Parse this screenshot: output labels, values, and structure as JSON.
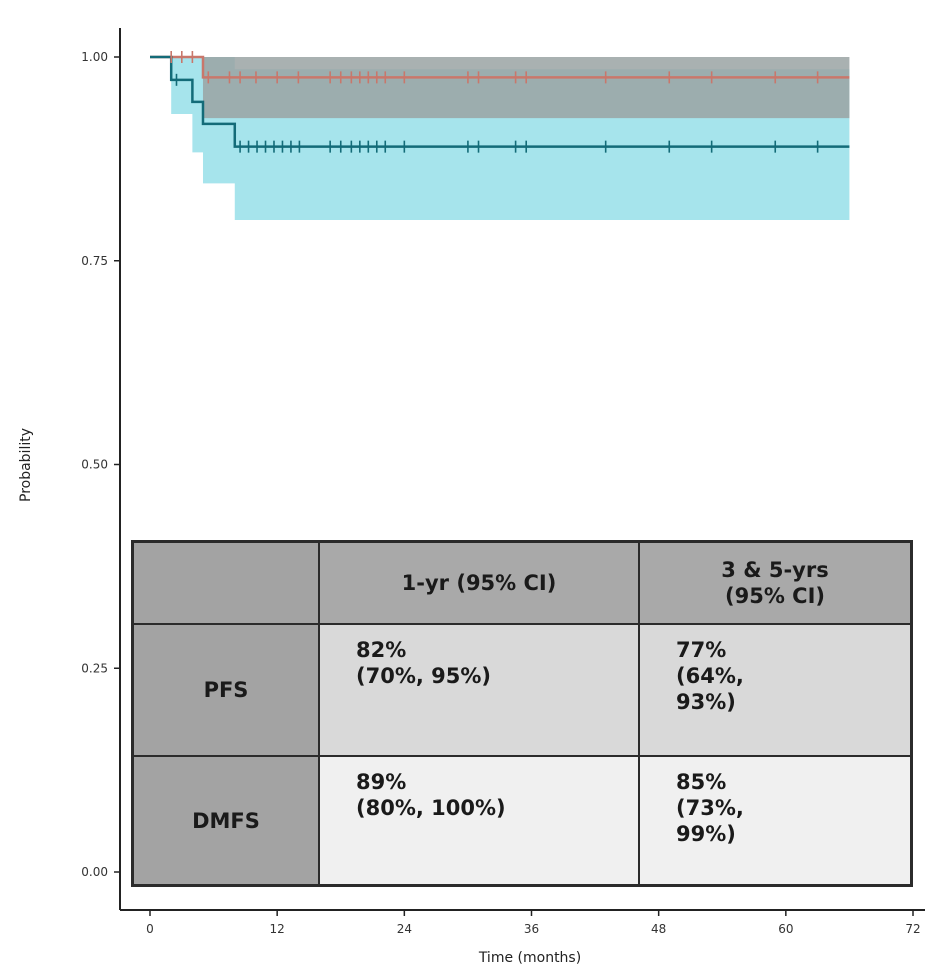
{
  "chart_data": {
    "type": "line",
    "subtype": "kaplan-meier survival curve with 95% confidence bands",
    "xlabel": "Time (months)",
    "ylabel": "Probability",
    "xlim": [
      0,
      72
    ],
    "ylim": [
      0,
      1
    ],
    "x_ticks": [
      "0",
      "12",
      "24",
      "36",
      "48",
      "60",
      "72"
    ],
    "y_ticks": [
      "0.00",
      "0.25",
      "0.50",
      "0.75",
      "1.00"
    ],
    "grid": false,
    "series": [
      {
        "color": "#c9776b",
        "step_x": [
          0,
          5,
          66
        ],
        "step_y": [
          1.0,
          0.975,
          0.975
        ],
        "ci_upper": [
          1.0,
          1.0,
          1.0
        ],
        "ci_lower": [
          1.0,
          0.925,
          0.925
        ],
        "ci_color": "#9aa3a3",
        "censor_x": [
          2,
          3,
          4,
          5.5,
          7.5,
          8.5,
          10,
          12,
          14,
          17,
          18,
          19,
          19.8,
          20.6,
          21.4,
          22.2,
          24,
          30,
          31,
          34.5,
          35.5,
          43,
          49,
          53,
          59,
          63
        ]
      },
      {
        "color": "#136b78",
        "step_x": [
          0,
          2,
          4,
          5,
          8,
          66
        ],
        "step_y": [
          1.0,
          0.972,
          0.945,
          0.918,
          0.89,
          0.89
        ],
        "ci_upper": [
          1.0,
          1.0,
          1.0,
          1.0,
          0.985,
          0.985
        ],
        "ci_lower": [
          1.0,
          0.93,
          0.883,
          0.845,
          0.8,
          0.8
        ],
        "ci_color": "#a6e4ec",
        "censor_x": [
          2.5,
          8.5,
          9.3,
          10.1,
          10.9,
          11.7,
          12.5,
          13.3,
          14.1,
          17,
          18,
          19,
          19.8,
          20.6,
          21.4,
          22.2,
          24,
          30,
          31,
          34.5,
          35.5,
          43,
          49,
          53,
          59,
          63
        ]
      }
    ],
    "table": {
      "columns": [
        "",
        "1-yr (95% CI)",
        "3 & 5-yrs (95% CI)"
      ],
      "rows": [
        {
          "label": "PFS",
          "one_yr": "82% (70%, 95%)",
          "three_five_yr": "77% (64%, 93%)"
        },
        {
          "label": "DMFS",
          "one_yr": "89% (80%, 100%)",
          "three_five_yr": "85% (73%, 99%)"
        }
      ]
    }
  },
  "table_ui": {
    "header_col1_line1": "1-yr (95% CI)",
    "header_col2_line1": "3 & 5-yrs",
    "header_col2_line2": "(95% CI)",
    "pfs_label": "PFS",
    "pfs_1yr_line1": "82%",
    "pfs_1yr_line2": "(70%, 95%)",
    "pfs_35yr_line1": "77%",
    "pfs_35yr_line2": "(64%,",
    "pfs_35yr_line3": "93%)",
    "dmfs_label": "DMFS",
    "dmfs_1yr_line1": "89%",
    "dmfs_1yr_line2": "(80%, 100%)",
    "dmfs_35yr_line1": "85%",
    "dmfs_35yr_line2": "(73%,",
    "dmfs_35yr_line3": "99%)"
  }
}
